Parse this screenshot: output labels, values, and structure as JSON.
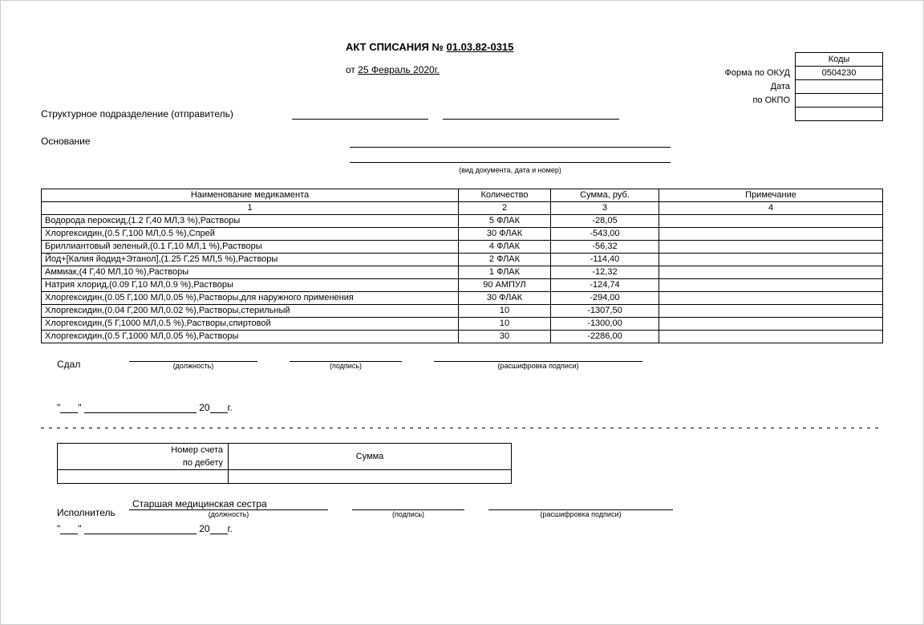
{
  "title_prefix": "АКТ СПИСАНИЯ № ",
  "title_number": "01.03.82-0315",
  "date_prefix": "от ",
  "date_value": "25 Февраль 2020г.",
  "codes": {
    "header": "Коды",
    "okud_label": "Форма по ОКУД",
    "okud_value": "0504230",
    "date_label": "Дата",
    "okpo_label": "по ОКПО"
  },
  "struct_label": "Структурное подразделение (отправитель)",
  "basis_label": "Основание",
  "basis_hint": "(вид документа, дата и номер)",
  "table": {
    "headers": [
      "Наименование медикамента",
      "Количество",
      "Сумма, руб.",
      "Примечание"
    ],
    "index_row": [
      "1",
      "2",
      "3",
      "4"
    ],
    "col_widths": [
      "520px",
      "115px",
      "135px",
      "auto"
    ],
    "rows": [
      [
        "Водорода пероксид,(1.2 Г,40 МЛ,3 %),Растворы",
        "5 ФЛАК",
        "-28,05",
        ""
      ],
      [
        "Хлоргексидин,(0.5 Г,100 МЛ,0.5 %),Спрей",
        "30 ФЛАК",
        "-543,00",
        ""
      ],
      [
        "Бриллиантовый зеленый,(0.1 Г,10 МЛ,1 %),Растворы",
        "4 ФЛАК",
        "-56,32",
        ""
      ],
      [
        "Йод+[Калия йодид+Этанол],(1.25 Г,25 МЛ,5 %),Растворы",
        "2 ФЛАК",
        "-114,40",
        ""
      ],
      [
        "Аммиак,(4 Г,40 МЛ,10 %),Растворы",
        "1 ФЛАК",
        "-12,32",
        ""
      ],
      [
        "Натрия хлорид,(0.09 Г,10 МЛ,0.9 %),Растворы",
        "90 АМПУЛ",
        "-124,74",
        ""
      ],
      [
        "Хлоргексидин,(0.05 Г,100 МЛ,0.05 %),Растворы,для наружного применения",
        "30 ФЛАК",
        "-294,00",
        ""
      ],
      [
        "Хлоргексидин,(0.04 Г,200 МЛ,0.02 %),Растворы,стерильный",
        "10",
        "-1307,50",
        ""
      ],
      [
        "Хлоргексидин,(5 Г,1000 МЛ,0.5 %),Растворы,спиртовой",
        "10",
        "-1300,00",
        ""
      ],
      [
        "Хлоргексидин,(0.5 Г,1000 МЛ,0.05 %),Растворы",
        "30",
        "-2286,00",
        ""
      ]
    ]
  },
  "gave_label": "Сдал",
  "sign_caps": {
    "position": "(должность)",
    "signature": "(подпись)",
    "decipher": "(расшифровка подписи)",
    "decipher2": "(расшифровка подписи)"
  },
  "date_quote": "\"___\"",
  "date_mid": " _________________ 20___г.",
  "acct": {
    "h1a": "Номер счета",
    "h1b": "по дебету",
    "h2": "Сумма"
  },
  "executor_label": "Исполнитель",
  "executor_value": "Старшая медицинская сестра"
}
